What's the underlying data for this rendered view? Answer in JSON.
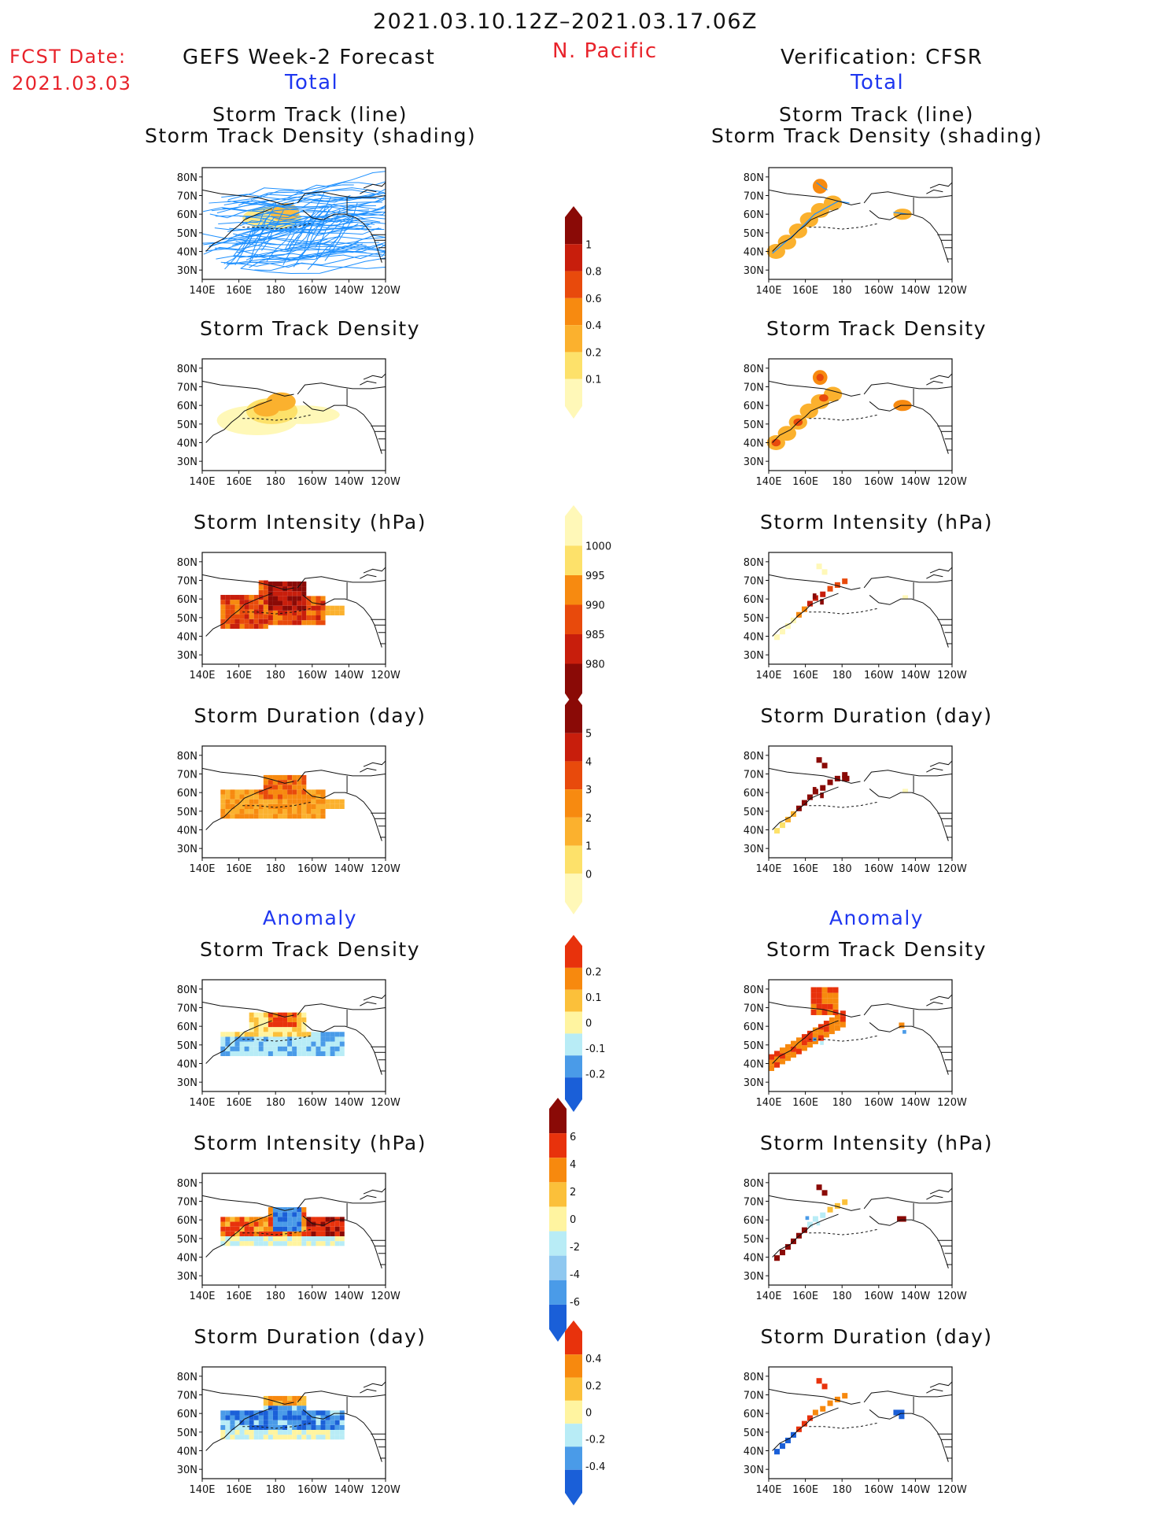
{
  "header": {
    "date_range": "2021.03.10.12Z–2021.03.17.06Z",
    "fcst_label": "FCST Date:",
    "fcst_date": "2021.03.03",
    "left_title": "GEFS Week-2 Forecast",
    "region": "N. Pacific",
    "right_title": "Verification: CFSR",
    "total_label": "Total",
    "anomaly_label": "Anomaly"
  },
  "colors": {
    "title_red": "#e8222a",
    "title_blue": "#1f37f0",
    "track_line": "#1e90ff",
    "positive_ramp": [
      "#fff8b8",
      "#fde16a",
      "#fbb12e",
      "#f78a10",
      "#e84a0c",
      "#c81e0c",
      "#8a0a06"
    ],
    "anomaly_ramp": [
      "#1a5fd8",
      "#4a9be8",
      "#b8ecf6",
      "#fff4a0",
      "#fbc03a",
      "#f7890e",
      "#e8320c",
      "#8a0a06"
    ]
  },
  "axes": {
    "lon_ticks": [
      "140E",
      "160E",
      "180",
      "160W",
      "140W",
      "120W"
    ],
    "lat_ticks": [
      "80N",
      "70N",
      "60N",
      "50N",
      "40N",
      "30N"
    ]
  },
  "panels": {
    "left": [
      {
        "id": "track",
        "title": "Storm Track (line)",
        "subtitle": "Storm Track Density (shading)"
      },
      {
        "id": "density",
        "title": "Storm Track Density"
      },
      {
        "id": "intensity",
        "title": "Storm Intensity (hPa)"
      },
      {
        "id": "duration",
        "title": "Storm Duration (day)"
      },
      {
        "id": "anom_density",
        "title": "Storm Track Density"
      },
      {
        "id": "anom_intensity",
        "title": "Storm Intensity (hPa)"
      },
      {
        "id": "anom_duration",
        "title": "Storm Duration (day)"
      }
    ],
    "right": [
      {
        "id": "track",
        "title": "Storm Track (line)",
        "subtitle": "Storm Track Density (shading)"
      },
      {
        "id": "density",
        "title": "Storm Track Density"
      },
      {
        "id": "intensity",
        "title": "Storm Intensity (hPa)"
      },
      {
        "id": "duration",
        "title": "Storm Duration (day)"
      },
      {
        "id": "anom_density",
        "title": "Storm Track Density"
      },
      {
        "id": "anom_intensity",
        "title": "Storm Intensity (hPa)"
      },
      {
        "id": "anom_duration",
        "title": "Storm Duration (day)"
      }
    ]
  },
  "colorbars": [
    {
      "id": "density",
      "labels": [
        "1",
        "0.8",
        "0.6",
        "0.4",
        "0.2",
        "0.1"
      ],
      "colors": [
        "#8a0a06",
        "#c81e0c",
        "#e84a0c",
        "#f78a10",
        "#fbb12e",
        "#fde16a",
        "#fff8b8"
      ]
    },
    {
      "id": "intensity",
      "labels": [
        "1000",
        "995",
        "990",
        "985",
        "980"
      ],
      "colors": [
        "#fff8b8",
        "#fde16a",
        "#f78a10",
        "#e84a0c",
        "#c81e0c",
        "#8a0a06"
      ]
    },
    {
      "id": "duration",
      "labels": [
        "5",
        "4",
        "3",
        "2",
        "1",
        "0"
      ],
      "colors": [
        "#8a0a06",
        "#c81e0c",
        "#e84a0c",
        "#f78a10",
        "#fbb12e",
        "#fde16a",
        "#fff8b8"
      ]
    },
    {
      "id": "anom_density",
      "labels": [
        "0.2",
        "0.1",
        "0",
        "-0.1",
        "-0.2"
      ],
      "colors": [
        "#e8320c",
        "#f7890e",
        "#fbc03a",
        "#fff4a0",
        "#b8ecf6",
        "#4a9be8",
        "#1a5fd8"
      ]
    },
    {
      "id": "anom_intensity",
      "labels": [
        "6",
        "4",
        "2",
        "0",
        "-2",
        "-4",
        "-6"
      ],
      "colors": [
        "#8a0a06",
        "#e8320c",
        "#f7890e",
        "#fbc03a",
        "#fff4a0",
        "#b8ecf6",
        "#8fc8f0",
        "#4a9be8",
        "#1a5fd8"
      ]
    },
    {
      "id": "anom_duration",
      "labels": [
        "0.4",
        "0.2",
        "0",
        "-0.2",
        "-0.4"
      ],
      "colors": [
        "#e8320c",
        "#f7890e",
        "#fbc03a",
        "#fff4a0",
        "#b8ecf6",
        "#4a9be8",
        "#1a5fd8"
      ]
    }
  ],
  "chart_data": [
    {
      "type": "heatmap",
      "panel": "GEFS Week-2 Forecast — Storm Track Density (total)",
      "xlabel": "",
      "ylabel": "",
      "xlim": [
        140,
        240
      ],
      "ylim": [
        25,
        85
      ],
      "x_ticks": [
        "140E",
        "160E",
        "180",
        "160W",
        "140W",
        "120W"
      ],
      "y_ticks": [
        "80N",
        "70N",
        "60N",
        "50N",
        "40N",
        "30N"
      ],
      "cells": [
        {
          "lon": 150,
          "lat": 52,
          "value": 0.1
        },
        {
          "lon": 160,
          "lat": 52,
          "value": 0.2
        },
        {
          "lon": 170,
          "lat": 55,
          "value": 0.4
        },
        {
          "lon": 180,
          "lat": 62,
          "value": 0.4
        },
        {
          "lon": 185,
          "lat": 57,
          "value": 0.4
        },
        {
          "lon": 195,
          "lat": 55,
          "value": 0.2
        },
        {
          "lon": 210,
          "lat": 54,
          "value": 0.1
        }
      ]
    },
    {
      "type": "heatmap",
      "panel": "CFSR Verification — Storm Track Density (total)",
      "xlabel": "",
      "ylabel": "",
      "xlim": [
        140,
        240
      ],
      "ylim": [
        25,
        85
      ],
      "x_ticks": [
        "140E",
        "160E",
        "180",
        "160W",
        "140W",
        "120W"
      ],
      "y_ticks": [
        "80N",
        "70N",
        "60N",
        "50N",
        "40N",
        "30N"
      ],
      "cells": [
        {
          "lon": 144,
          "lat": 40,
          "value": 0.6
        },
        {
          "lon": 155,
          "lat": 50,
          "value": 0.4
        },
        {
          "lon": 165,
          "lat": 60,
          "value": 0.4
        },
        {
          "lon": 168,
          "lat": 75,
          "value": 0.6
        },
        {
          "lon": 175,
          "lat": 66,
          "value": 0.4
        },
        {
          "lon": 213,
          "lat": 60,
          "value": 0.4
        }
      ]
    },
    {
      "type": "heatmap",
      "panel": "GEFS Week-2 Forecast — Storm Intensity (hPa)",
      "xlim": [
        140,
        240
      ],
      "ylim": [
        25,
        85
      ],
      "cells": [
        {
          "lon": 160,
          "lat": 52,
          "value": 988
        },
        {
          "lon": 175,
          "lat": 55,
          "value": 984
        },
        {
          "lon": 185,
          "lat": 60,
          "value": 980
        },
        {
          "lon": 205,
          "lat": 55,
          "value": 992
        }
      ]
    },
    {
      "type": "heatmap",
      "panel": "GEFS Week-2 Forecast — Storm Duration (day)",
      "xlim": [
        140,
        240
      ],
      "ylim": [
        25,
        85
      ],
      "cells": [
        {
          "lon": 160,
          "lat": 52,
          "value": 2
        },
        {
          "lon": 180,
          "lat": 60,
          "value": 3
        },
        {
          "lon": 205,
          "lat": 55,
          "value": 2
        }
      ]
    }
  ]
}
